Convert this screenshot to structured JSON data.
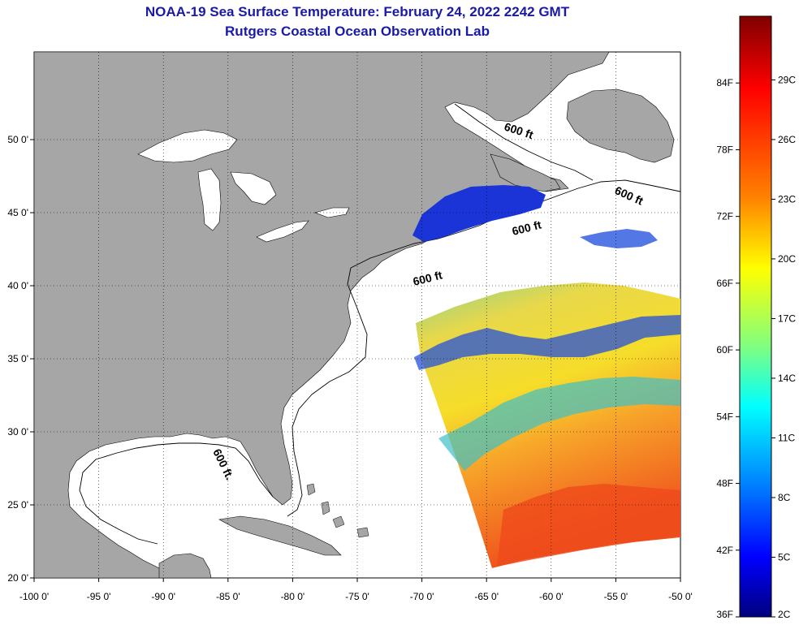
{
  "title": {
    "line1": "NOAA-19 Sea Surface Temperature:  February 24, 2022 2242 GMT",
    "line2": "Rutgers Coastal Ocean Observation Lab"
  },
  "map": {
    "lon_ticks": [
      "-100 0'",
      "-95 0'",
      "-90 0'",
      "-85 0'",
      "-80 0'",
      "-75 0'",
      "-70 0'",
      "-65 0'",
      "-60 0'",
      "-55 0'",
      "-50 0'"
    ],
    "lat_ticks": [
      "50 0'",
      "45 0'",
      "40 0'",
      "35 0'",
      "30 0'",
      "25 0'",
      "20 0'"
    ],
    "contour_labels": [
      "600 ft",
      "600 ft",
      "600 ft",
      "600 ft",
      "600 ft."
    ],
    "colors": {
      "land": "#a6a6a6",
      "ocean": "#ffffff",
      "title": "#1a1aa8"
    }
  },
  "colorbar": {
    "fahrenheit": [
      "84F",
      "78F",
      "72F",
      "66F",
      "60F",
      "54F",
      "48F",
      "42F",
      "36F"
    ],
    "celsius": [
      "29C",
      "26C",
      "23C",
      "20C",
      "17C",
      "14C",
      "11C",
      "8C",
      "5C",
      "2C"
    ],
    "colors": [
      "#7f0000",
      "#ff0000",
      "#ff7f00",
      "#ffff00",
      "#7fff7f",
      "#00ffff",
      "#007fff",
      "#0000ff",
      "#00007f"
    ]
  }
}
